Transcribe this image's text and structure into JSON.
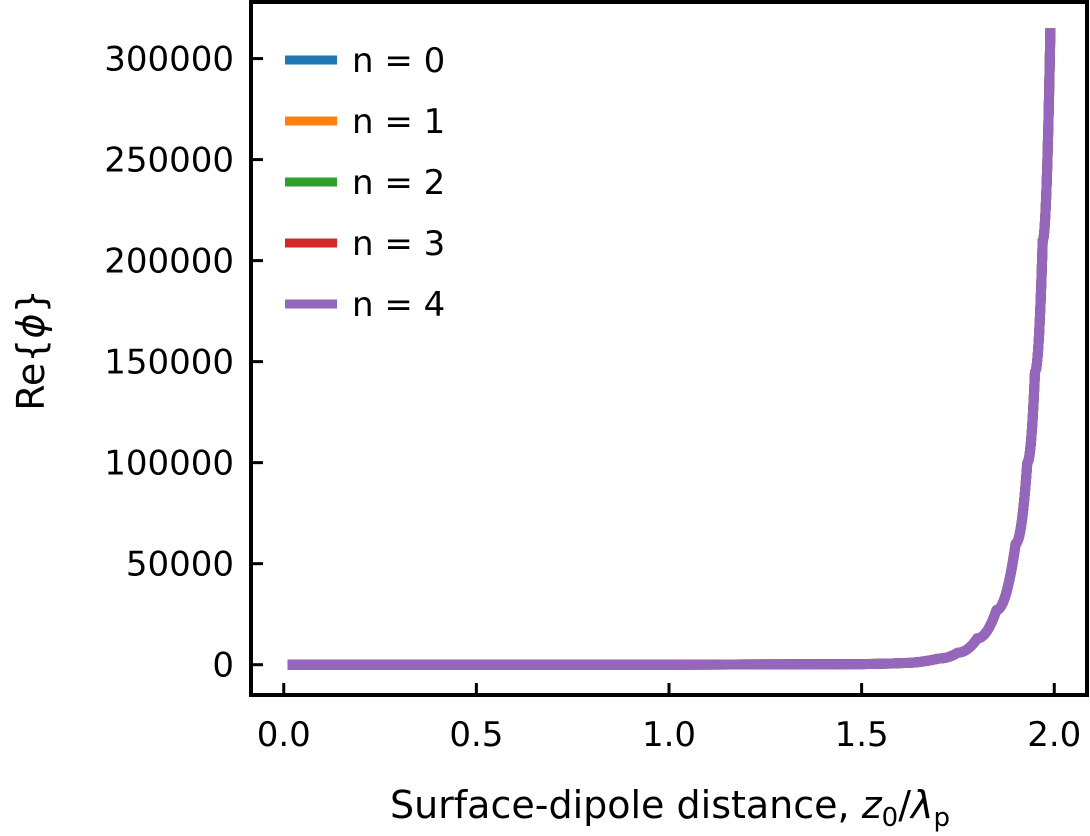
{
  "chart_data": {
    "type": "line",
    "title": "",
    "xlabel": "Surface-dipole distance, z₀/λₚ",
    "xlabel_parts": {
      "prefix": "Surface-dipole distance, ",
      "var1": "z",
      "sub1": "0",
      "slash": "/",
      "var2": "λ",
      "sub2": "p"
    },
    "ylabel": "Re{ϕ}",
    "ylabel_parts": {
      "prefix": "Re{",
      "symbol": "ϕ",
      "suffix": "}"
    },
    "xlim": [
      -0.085,
      2.085
    ],
    "ylim": [
      -15000,
      328000
    ],
    "xticks": [
      0.0,
      0.5,
      1.0,
      1.5,
      2.0
    ],
    "xtick_labels": [
      "0.0",
      "0.5",
      "1.0",
      "1.5",
      "2.0"
    ],
    "yticks": [
      0,
      50000,
      100000,
      150000,
      200000,
      250000,
      300000
    ],
    "ytick_labels": [
      "0",
      "50000",
      "100000",
      "150000",
      "200000",
      "250000",
      "300000"
    ],
    "grid": false,
    "legend_position": "top-left",
    "x": [
      0.01,
      0.5,
      1.0,
      1.5,
      1.6,
      1.7,
      1.75,
      1.8,
      1.85,
      1.9,
      1.93,
      1.95,
      1.97,
      1.99
    ],
    "series": [
      {
        "name": "n = 0",
        "color": "#1f77b4",
        "values": [
          0,
          0,
          0,
          300,
          800,
          3000,
          6000,
          13000,
          27000,
          60000,
          100000,
          145000,
          210000,
          315000
        ]
      },
      {
        "name": "n = 1",
        "color": "#ff7f0e",
        "values": [
          0,
          0,
          0,
          300,
          800,
          3000,
          6000,
          13000,
          27000,
          60000,
          100000,
          145000,
          210000,
          315000
        ]
      },
      {
        "name": "n = 2",
        "color": "#2ca02c",
        "values": [
          0,
          0,
          0,
          300,
          800,
          3000,
          6000,
          13000,
          27000,
          60000,
          100000,
          145000,
          210000,
          315000
        ]
      },
      {
        "name": "n = 3",
        "color": "#d62728",
        "values": [
          0,
          0,
          0,
          300,
          800,
          3000,
          6000,
          13000,
          27000,
          60000,
          100000,
          145000,
          210000,
          315000
        ]
      },
      {
        "name": "n = 4",
        "color": "#9467bd",
        "values": [
          0,
          0,
          0,
          300,
          800,
          3000,
          6000,
          13000,
          27000,
          60000,
          100000,
          145000,
          210000,
          315000
        ]
      }
    ]
  }
}
